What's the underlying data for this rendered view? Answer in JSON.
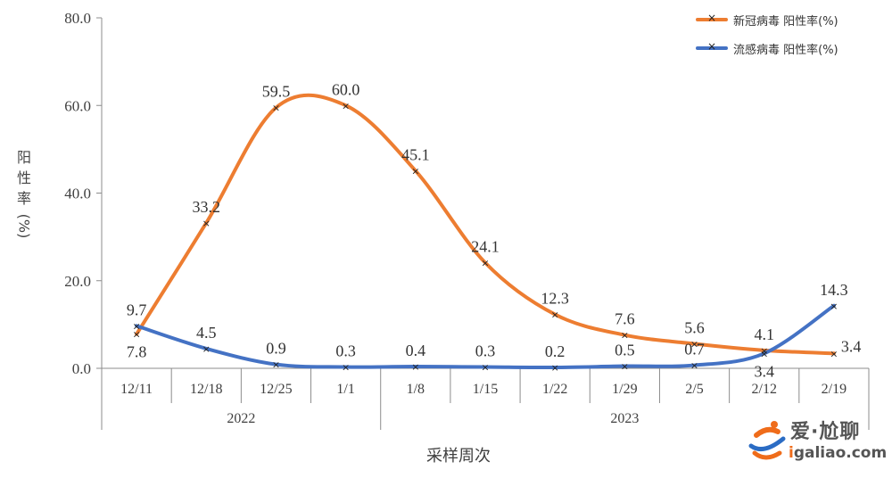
{
  "chart_data": {
    "type": "line",
    "xlabel": "采样周次",
    "ylabel": "阳性率(%)",
    "ylim": [
      0,
      80
    ],
    "yticks": [
      "0.0",
      "20.0",
      "40.0",
      "60.0",
      "80.0"
    ],
    "categories": [
      "12/11",
      "12/18",
      "12/25",
      "1/1",
      "1/8",
      "1/15",
      "1/22",
      "1/29",
      "2/5",
      "2/12",
      "2/19"
    ],
    "year_groups": [
      {
        "label": "2022",
        "span": 4
      },
      {
        "label": "2023",
        "span": 7
      }
    ],
    "series": [
      {
        "name": "新冠病毒 阳性率(%)",
        "color": "#ed7d31",
        "values": [
          7.8,
          33.2,
          59.5,
          60.0,
          45.1,
          24.1,
          12.3,
          7.6,
          5.6,
          4.1,
          3.4
        ],
        "labels": [
          "7.8",
          "33.2",
          "59.5",
          "60.0",
          "45.1",
          "24.1",
          "12.3",
          "7.6",
          "5.6",
          "4.1",
          "3.4"
        ]
      },
      {
        "name": "流感病毒 阳性率(%)",
        "color": "#4472c4",
        "values": [
          9.7,
          4.5,
          0.9,
          0.3,
          0.4,
          0.3,
          0.2,
          0.5,
          0.7,
          3.4,
          14.3
        ],
        "labels": [
          "9.7",
          "4.5",
          "0.9",
          "0.3",
          "0.4",
          "0.3",
          "0.2",
          "0.5",
          "0.7",
          "3.4",
          "14.3"
        ]
      }
    ],
    "grid": false,
    "legend_position": "top-right"
  },
  "watermark": {
    "title": "爱·尬聊",
    "url_accent": "i",
    "url_rest": "galiao.com"
  }
}
